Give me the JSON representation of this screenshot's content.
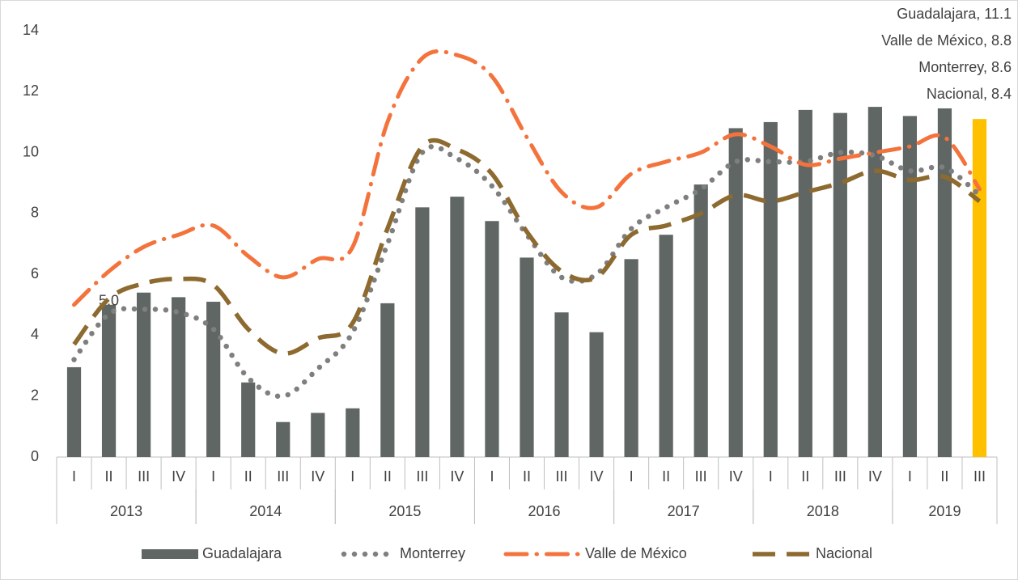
{
  "chart_data": {
    "type": "bar",
    "categories": [
      "I",
      "II",
      "III",
      "IV",
      "I",
      "II",
      "III",
      "IV",
      "I",
      "II",
      "III",
      "IV",
      "I",
      "II",
      "III",
      "IV",
      "I",
      "II",
      "III",
      "IV",
      "I",
      "II",
      "III",
      "IV",
      "I",
      "II",
      "III"
    ],
    "groups": [
      {
        "label": "2013",
        "start": 0,
        "end": 4
      },
      {
        "label": "2014",
        "start": 4,
        "end": 8
      },
      {
        "label": "2015",
        "start": 8,
        "end": 12
      },
      {
        "label": "2016",
        "start": 12,
        "end": 16
      },
      {
        "label": "2017",
        "start": 16,
        "end": 20
      },
      {
        "label": "2018",
        "start": 20,
        "end": 24
      },
      {
        "label": "2019",
        "start": 24,
        "end": 27
      }
    ],
    "series": [
      {
        "name": "Guadalajara",
        "type": "bar",
        "color": "#5f6663",
        "highlight_color": "#ffc000",
        "values": [
          2.95,
          5.0,
          5.4,
          5.25,
          5.1,
          2.45,
          1.15,
          1.45,
          1.6,
          5.05,
          8.2,
          8.55,
          7.75,
          6.55,
          4.75,
          4.1,
          6.5,
          7.3,
          8.95,
          10.8,
          11.0,
          11.4,
          11.3,
          11.5,
          11.2,
          11.45,
          11.1
        ],
        "value_labels": [
          null,
          "5.0",
          null,
          null,
          null,
          null,
          null,
          null,
          null,
          null,
          null,
          null,
          null,
          null,
          null,
          null,
          null,
          null,
          null,
          null,
          null,
          null,
          null,
          null,
          null,
          null,
          null
        ]
      },
      {
        "name": "Monterrey",
        "type": "line",
        "style": "dotted",
        "color": "#7f7f7f",
        "values": [
          3.2,
          4.7,
          4.85,
          4.75,
          4.2,
          2.6,
          2.0,
          2.9,
          4.1,
          7.0,
          10.0,
          9.8,
          8.9,
          7.3,
          5.9,
          6.0,
          7.5,
          8.2,
          8.8,
          9.7,
          9.7,
          9.7,
          10.0,
          9.9,
          9.4,
          9.5,
          8.6
        ]
      },
      {
        "name": "Valle de México",
        "type": "line",
        "style": "dashdot",
        "color": "#f4733c",
        "values": [
          5.0,
          6.1,
          6.9,
          7.3,
          7.6,
          6.6,
          5.9,
          6.5,
          6.9,
          11.0,
          13.1,
          13.2,
          12.5,
          10.5,
          8.7,
          8.2,
          9.3,
          9.7,
          10.0,
          10.6,
          10.2,
          9.6,
          9.8,
          10.0,
          10.2,
          10.5,
          8.8
        ]
      },
      {
        "name": "Nacional",
        "type": "line",
        "style": "dashed",
        "color": "#8d6a2f",
        "values": [
          3.7,
          5.2,
          5.7,
          5.85,
          5.65,
          4.2,
          3.4,
          3.9,
          4.4,
          7.5,
          10.2,
          10.1,
          9.3,
          7.4,
          6.1,
          5.9,
          7.3,
          7.6,
          8.0,
          8.6,
          8.4,
          8.7,
          9.0,
          9.4,
          9.1,
          9.2,
          8.4
        ]
      }
    ],
    "annotations": [
      "Guadalajara, 11.1",
      "Valle de México, 8.8",
      "Monterrey, 8.6",
      "Nacional, 8.4"
    ],
    "ylim": [
      0,
      14
    ],
    "yticks": [
      0,
      2,
      4,
      6,
      8,
      10,
      12,
      14
    ],
    "grid": false,
    "legend": "bottom"
  }
}
